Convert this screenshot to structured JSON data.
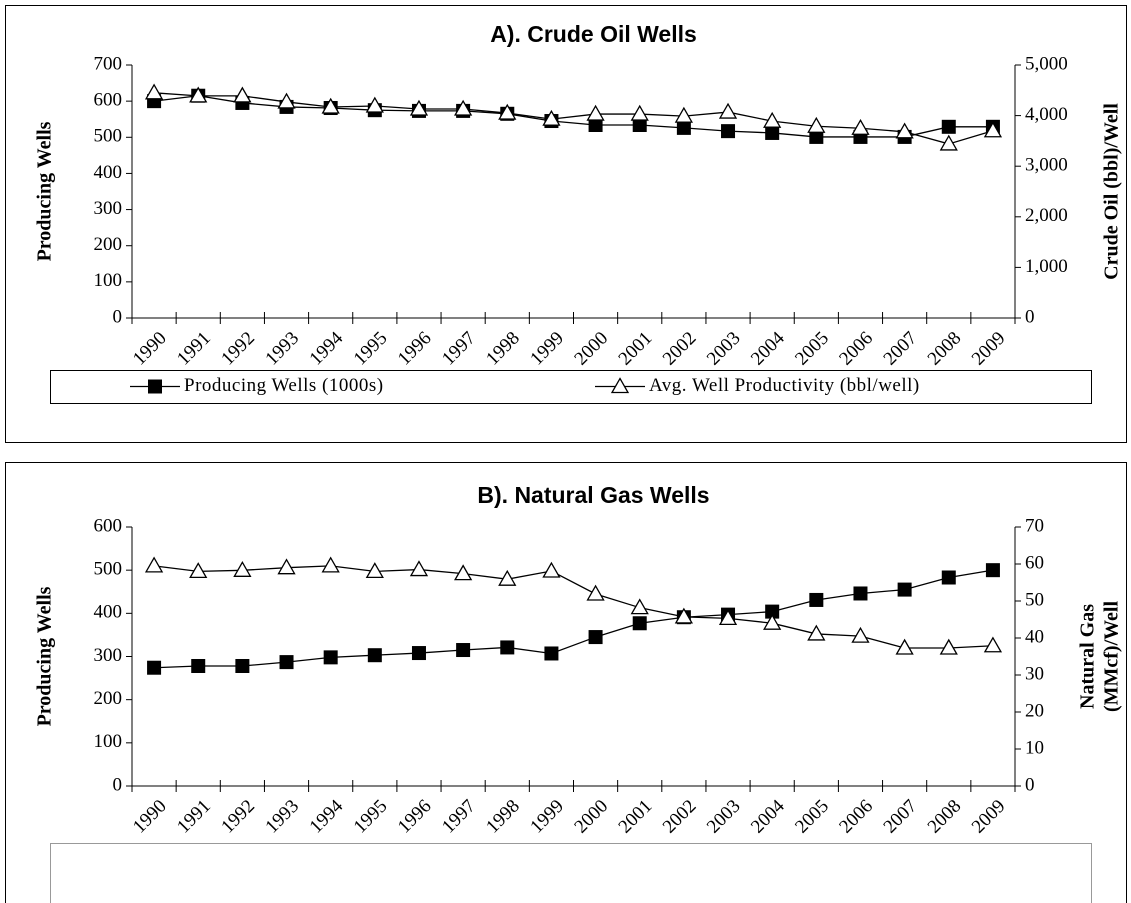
{
  "chart_data": [
    {
      "type": "line",
      "title": "A). Crude Oil Wells",
      "ylabel": "Producing Wells",
      "y2label": [
        "Crude Oil (bbl)/Well"
      ],
      "categories": [
        "1990",
        "1991",
        "1992",
        "1993",
        "1994",
        "1995",
        "1996",
        "1997",
        "1998",
        "1999",
        "2000",
        "2001",
        "2002",
        "2003",
        "2004",
        "2005",
        "2006",
        "2007",
        "2008",
        "2009"
      ],
      "ylim": [
        0,
        700
      ],
      "yticks": [
        0,
        100,
        200,
        300,
        400,
        500,
        600,
        700
      ],
      "y2lim": [
        0,
        5000
      ],
      "y2ticks": [
        0,
        {
          "value": 1000,
          "label": "1,000"
        },
        {
          "value": 2000,
          "label": "2,000"
        },
        {
          "value": 3000,
          "label": "3,000"
        },
        {
          "value": 4000,
          "label": "4,000"
        },
        {
          "value": 5000,
          "label": "5,000"
        }
      ],
      "legend": "bottom",
      "series": [
        {
          "name": "Producing Wells (1000s)",
          "color": "#000000",
          "marker": "square",
          "values": [
            600,
            615,
            595,
            584,
            581,
            575,
            573,
            573,
            565,
            545,
            534,
            534,
            526,
            517,
            512,
            501,
            501,
            501,
            529,
            529
          ]
        },
        {
          "name": "Avg. Well Productivity (bbl/well)",
          "color": "#000000",
          "marker": "triangle",
          "axis": "y2",
          "values": [
            4450,
            4390,
            4390,
            4270,
            4170,
            4190,
            4130,
            4130,
            4050,
            3930,
            4030,
            4030,
            3990,
            4070,
            3890,
            3790,
            3750,
            3680,
            3440,
            3700
          ]
        }
      ]
    },
    {
      "type": "line",
      "title": "B). Natural Gas Wells",
      "ylabel": "Producing Wells",
      "y2label": [
        "Natural Gas",
        "(MMcf)/Well"
      ],
      "categories": [
        "1990",
        "1991",
        "1992",
        "1993",
        "1994",
        "1995",
        "1996",
        "1997",
        "1998",
        "1999",
        "2000",
        "2001",
        "2002",
        "2003",
        "2004",
        "2005",
        "2006",
        "2007",
        "2008",
        "2009"
      ],
      "ylim": [
        0,
        600
      ],
      "yticks": [
        0,
        100,
        200,
        300,
        400,
        500,
        600
      ],
      "y2lim": [
        0,
        70
      ],
      "y2ticks": [
        0,
        10,
        20,
        30,
        40,
        50,
        60,
        70
      ],
      "legend": "bottom",
      "series": [
        {
          "color": "#000000",
          "marker": "square",
          "values": [
            274,
            278,
            278,
            287,
            298,
            303,
            308,
            315,
            321,
            307,
            345,
            377,
            391,
            397,
            404,
            431,
            446,
            455,
            483,
            500
          ]
        },
        {
          "color": "#000000",
          "marker": "triangle",
          "axis": "y2",
          "values": [
            59.5,
            58,
            58.3,
            59,
            59.5,
            58,
            58.5,
            57.4,
            55.9,
            58.1,
            51.9,
            48.2,
            45.7,
            45.3,
            44,
            41.1,
            40.5,
            37.3,
            37.3,
            37.9
          ]
        }
      ]
    }
  ]
}
